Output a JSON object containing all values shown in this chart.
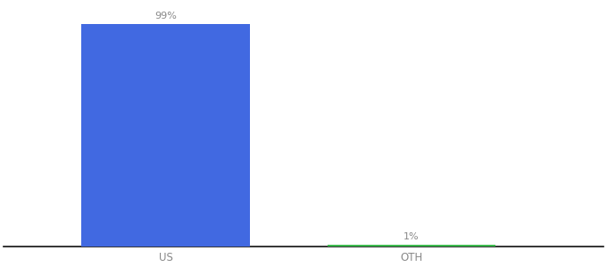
{
  "categories": [
    "US",
    "OTH"
  ],
  "values": [
    99,
    1
  ],
  "bar_colors": [
    "#4169e1",
    "#3dba4e"
  ],
  "value_labels": [
    "99%",
    "1%"
  ],
  "label_color": "#888888",
  "background_color": "#ffffff",
  "ylim": [
    0,
    108
  ],
  "bar_width": 0.28,
  "title_fontsize": 10,
  "axis_label_fontsize": 8.5,
  "value_fontsize": 8,
  "x_positions": [
    0.27,
    0.68
  ]
}
